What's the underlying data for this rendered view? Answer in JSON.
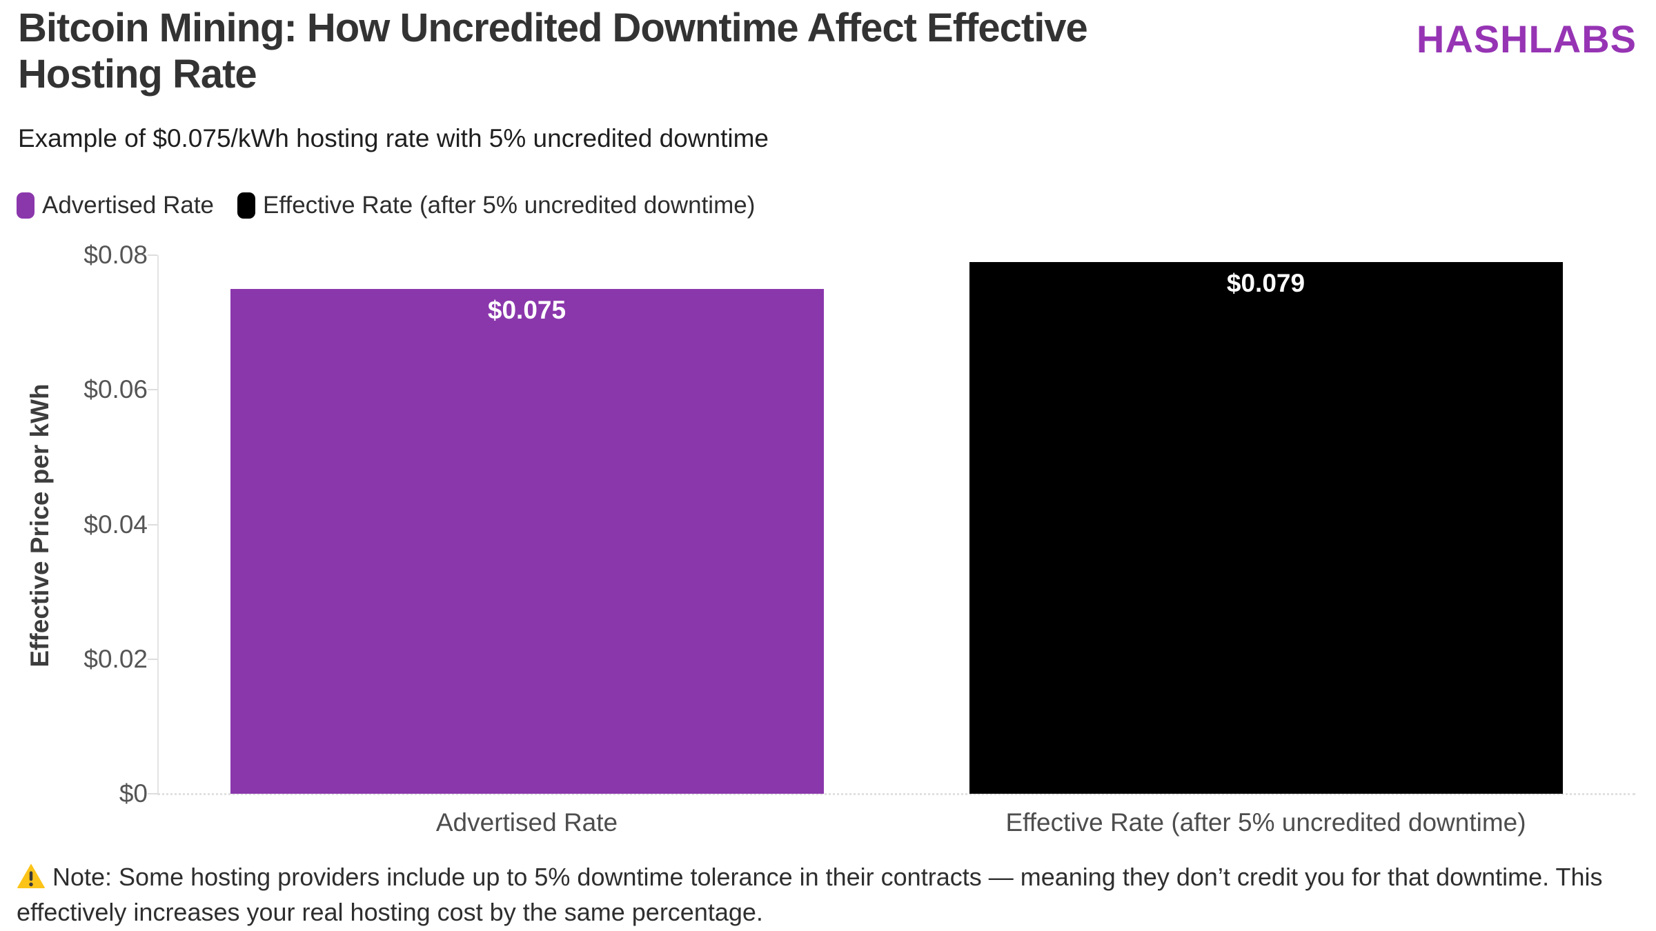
{
  "header": {
    "title_line1": "Bitcoin Mining: How Uncredited Downtime Affect Effective",
    "title_line2": "Hosting Rate",
    "logo": "HASHLABS",
    "subtitle": "Example of $0.075/kWh hosting rate with 5% uncredited downtime"
  },
  "legend": [
    {
      "label": "Advertised Rate",
      "color": "#8B37AC"
    },
    {
      "label": "Effective Rate (after 5% uncredited downtime)",
      "color": "#000000"
    }
  ],
  "chart_data": {
    "type": "bar",
    "title": "Bitcoin Mining: How Uncredited Downtime Affect Effective Hosting Rate",
    "subtitle": "Example of $0.075/kWh hosting rate with 5% uncredited downtime",
    "categories": [
      "Advertised Rate",
      "Effective Rate (after 5% uncredited downtime)"
    ],
    "series": [
      {
        "name": "Advertised Rate",
        "value": 0.075,
        "value_label": "$0.075",
        "color": "#8B37AC"
      },
      {
        "name": "Effective Rate (after 5% uncredited downtime)",
        "value": 0.079,
        "value_label": "$0.079",
        "color": "#000000"
      }
    ],
    "xlabel": "",
    "ylabel": "Effective Price per kWh",
    "ylim": [
      0,
      0.08
    ],
    "yticks": [
      {
        "value": 0,
        "label": "$0"
      },
      {
        "value": 0.02,
        "label": "$0.02"
      },
      {
        "value": 0.04,
        "label": "$0.04"
      },
      {
        "value": 0.06,
        "label": "$0.06"
      },
      {
        "value": 0.08,
        "label": "$0.08"
      }
    ],
    "grid": false,
    "legend_position": "top-left",
    "bar_label_position": "inside-top"
  },
  "note": {
    "icon": "warning-icon",
    "text": "Note: Some hosting providers include up to 5% downtime tolerance in their contracts — meaning they don’t credit you for that downtime. This effectively increases your real hosting cost by the same percentage."
  },
  "colors": {
    "accent_purple": "#8B37AC",
    "logo_purple": "#9634B4",
    "bar_black": "#000000",
    "title_text": "#333333",
    "axis_text": "#555555",
    "axis_line": "#e3e3e3",
    "warning_yellow": "#FCC419"
  }
}
